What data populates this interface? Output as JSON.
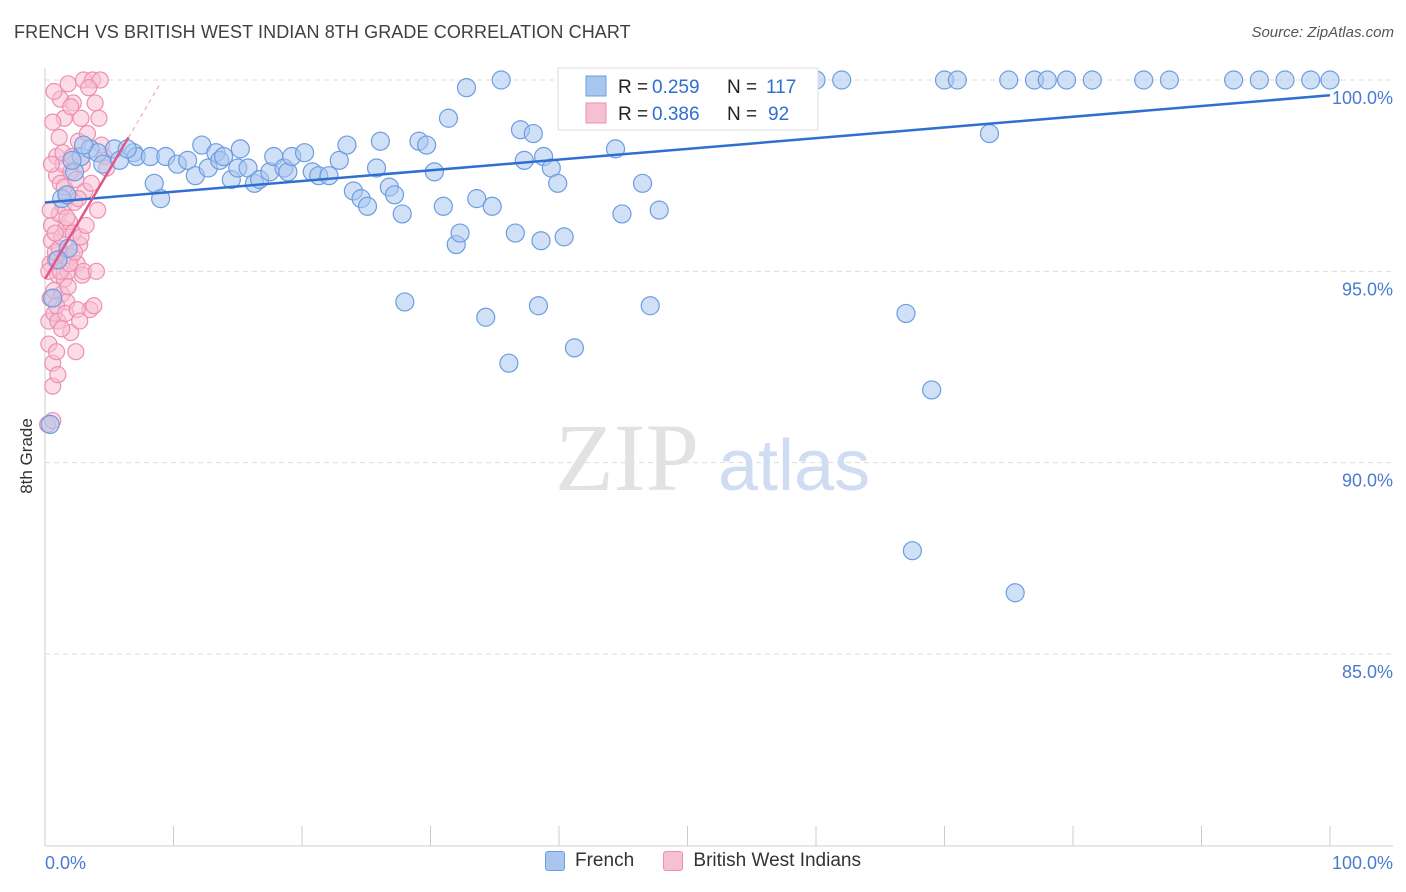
{
  "title": "FRENCH VS BRITISH WEST INDIAN 8TH GRADE CORRELATION CHART",
  "source": "Source: ZipAtlas.com",
  "watermark": {
    "zip": "ZIP",
    "atlas": "atlas"
  },
  "colors": {
    "french": "#6d9de0",
    "french_fill": "#a9c6ef",
    "french_line": "#2e6fd0",
    "bwi": "#ee8fb1",
    "bwi_fill": "#f7bfd3",
    "bwi_line": "#e0578a",
    "axis_label": "#4a7bd0",
    "grid": "#dddddd"
  },
  "legend_top": [
    {
      "r_label": "R =",
      "r": "0.259",
      "n_label": "N =",
      "n": "117"
    },
    {
      "r_label": "R =",
      "r": "0.386",
      "n_label": "N =",
      "n": "92"
    }
  ],
  "chart_data": {
    "type": "scatter",
    "title": "FRENCH VS BRITISH WEST INDIAN 8TH GRADE CORRELATION CHART",
    "xlabel": "",
    "ylabel": "8th Grade",
    "xlim": [
      0,
      100
    ],
    "ylim": [
      80.5,
      100.9
    ],
    "x_tick_labels": [
      "0.0%",
      "100.0%"
    ],
    "y_ticks": [
      85,
      90,
      95,
      100
    ],
    "y_tick_labels": [
      "85.0%",
      "90.0%",
      "95.0%",
      "100.0%"
    ],
    "grid": true,
    "legend_placement": "bottom-center",
    "series": [
      {
        "name": "French",
        "R": 0.259,
        "N": 117,
        "trend": {
          "x": [
            0,
            100
          ],
          "y": [
            96.8,
            99.6
          ]
        },
        "points": [
          [
            0.4,
            91.0
          ],
          [
            1.3,
            96.9
          ],
          [
            1.7,
            97.0
          ],
          [
            1.8,
            95.6
          ],
          [
            2.3,
            97.6
          ],
          [
            2.8,
            98.0
          ],
          [
            3.5,
            98.2
          ],
          [
            4.1,
            98.1
          ],
          [
            4.5,
            97.8
          ],
          [
            5.4,
            98.2
          ],
          [
            6.9,
            98.1
          ],
          [
            7.1,
            98.0
          ],
          [
            8.2,
            98.0
          ],
          [
            8.5,
            97.3
          ],
          [
            9.0,
            96.9
          ],
          [
            9.4,
            98.0
          ],
          [
            10.3,
            97.8
          ],
          [
            11.1,
            97.9
          ],
          [
            11.7,
            97.5
          ],
          [
            12.2,
            98.3
          ],
          [
            12.7,
            97.7
          ],
          [
            13.3,
            98.1
          ],
          [
            13.6,
            97.9
          ],
          [
            13.9,
            98.0
          ],
          [
            14.5,
            97.4
          ],
          [
            15.0,
            97.7
          ],
          [
            15.2,
            98.2
          ],
          [
            15.8,
            97.7
          ],
          [
            16.3,
            97.3
          ],
          [
            16.7,
            97.4
          ],
          [
            17.5,
            97.6
          ],
          [
            17.8,
            98.0
          ],
          [
            18.6,
            97.7
          ],
          [
            18.9,
            97.6
          ],
          [
            19.2,
            98.0
          ],
          [
            20.2,
            98.1
          ],
          [
            20.8,
            97.6
          ],
          [
            21.3,
            97.5
          ],
          [
            22.1,
            97.5
          ],
          [
            22.9,
            97.9
          ],
          [
            23.5,
            98.3
          ],
          [
            24.0,
            97.1
          ],
          [
            24.6,
            96.9
          ],
          [
            25.1,
            96.7
          ],
          [
            25.8,
            97.7
          ],
          [
            26.1,
            98.4
          ],
          [
            26.8,
            97.2
          ],
          [
            27.2,
            97.0
          ],
          [
            27.8,
            96.5
          ],
          [
            28.0,
            94.2
          ],
          [
            29.1,
            98.4
          ],
          [
            29.7,
            98.3
          ],
          [
            30.3,
            97.6
          ],
          [
            31.0,
            96.7
          ],
          [
            31.4,
            99.0
          ],
          [
            32.0,
            95.7
          ],
          [
            32.3,
            96.0
          ],
          [
            32.8,
            99.8
          ],
          [
            33.6,
            96.9
          ],
          [
            34.3,
            93.8
          ],
          [
            34.8,
            96.7
          ],
          [
            35.5,
            100.0
          ],
          [
            36.1,
            92.6
          ],
          [
            36.6,
            96.0
          ],
          [
            37.0,
            98.7
          ],
          [
            37.3,
            97.9
          ],
          [
            38.0,
            98.6
          ],
          [
            38.4,
            94.1
          ],
          [
            38.6,
            95.8
          ],
          [
            38.8,
            98.0
          ],
          [
            39.4,
            97.7
          ],
          [
            39.9,
            97.3
          ],
          [
            40.4,
            95.9
          ],
          [
            41.2,
            93.0
          ],
          [
            42.8,
            100.0
          ],
          [
            43.9,
            100.0
          ],
          [
            44.4,
            98.2
          ],
          [
            44.9,
            96.5
          ],
          [
            45.6,
            100.0
          ],
          [
            46.5,
            97.3
          ],
          [
            46.9,
            100.0
          ],
          [
            47.1,
            94.1
          ],
          [
            47.8,
            96.6
          ],
          [
            48.5,
            100.0
          ],
          [
            50.0,
            100.0
          ],
          [
            51.5,
            100.0
          ],
          [
            53.0,
            100.0
          ],
          [
            55.0,
            100.0
          ],
          [
            57.0,
            100.0
          ],
          [
            58.5,
            100.0
          ],
          [
            60.0,
            100.0
          ],
          [
            62.0,
            100.0
          ],
          [
            67.0,
            93.9
          ],
          [
            67.5,
            87.7
          ],
          [
            69.0,
            91.9
          ],
          [
            70.0,
            100.0
          ],
          [
            71.0,
            100.0
          ],
          [
            73.5,
            98.6
          ],
          [
            75.0,
            100.0
          ],
          [
            75.5,
            86.6
          ],
          [
            77.0,
            100.0
          ],
          [
            78.0,
            100.0
          ],
          [
            79.5,
            100.0
          ],
          [
            81.5,
            100.0
          ],
          [
            85.5,
            100.0
          ],
          [
            87.5,
            100.0
          ],
          [
            92.5,
            100.0
          ],
          [
            94.5,
            100.0
          ],
          [
            96.5,
            100.0
          ],
          [
            98.5,
            100.0
          ],
          [
            100.0,
            100.0
          ],
          [
            0.6,
            94.3
          ],
          [
            1.0,
            95.3
          ],
          [
            2.1,
            97.9
          ],
          [
            3.0,
            98.3
          ],
          [
            5.8,
            97.9
          ],
          [
            6.4,
            98.2
          ]
        ]
      },
      {
        "name": "British West Indians",
        "R": 0.386,
        "N": 92,
        "trend": {
          "x": [
            0,
            6.5
          ],
          "y": [
            94.8,
            98.5
          ]
        },
        "points": [
          [
            0.2,
            91.0
          ],
          [
            0.3,
            93.1
          ],
          [
            0.3,
            93.7
          ],
          [
            0.4,
            94.3
          ],
          [
            0.4,
            95.2
          ],
          [
            0.5,
            95.8
          ],
          [
            0.5,
            96.2
          ],
          [
            0.6,
            92.6
          ],
          [
            0.6,
            92.0
          ],
          [
            0.7,
            93.9
          ],
          [
            0.7,
            94.5
          ],
          [
            0.8,
            95.3
          ],
          [
            0.8,
            95.5
          ],
          [
            0.9,
            97.5
          ],
          [
            0.9,
            98.0
          ],
          [
            1.0,
            93.7
          ],
          [
            1.0,
            94.9
          ],
          [
            1.1,
            95.6
          ],
          [
            1.1,
            96.5
          ],
          [
            1.2,
            97.3
          ],
          [
            1.2,
            99.5
          ],
          [
            1.3,
            94.4
          ],
          [
            1.3,
            95.9
          ],
          [
            1.4,
            96.7
          ],
          [
            1.4,
            97.8
          ],
          [
            1.5,
            99.0
          ],
          [
            1.5,
            94.8
          ],
          [
            1.6,
            95.4
          ],
          [
            1.6,
            96.1
          ],
          [
            1.7,
            97.0
          ],
          [
            1.7,
            94.2
          ],
          [
            1.8,
            95.0
          ],
          [
            1.8,
            99.9
          ],
          [
            1.9,
            96.3
          ],
          [
            2.0,
            97.6
          ],
          [
            2.0,
            93.4
          ],
          [
            2.1,
            95.4
          ],
          [
            2.2,
            99.4
          ],
          [
            2.3,
            96.8
          ],
          [
            2.4,
            92.9
          ],
          [
            2.5,
            95.2
          ],
          [
            2.6,
            98.4
          ],
          [
            2.7,
            95.7
          ],
          [
            2.8,
            99.0
          ],
          [
            2.9,
            94.9
          ],
          [
            3.0,
            100.0
          ],
          [
            3.1,
            97.1
          ],
          [
            3.3,
            98.6
          ],
          [
            3.5,
            94.0
          ],
          [
            3.7,
            100.0
          ],
          [
            3.9,
            99.4
          ],
          [
            4.1,
            96.6
          ],
          [
            4.3,
            100.0
          ],
          [
            4.6,
            98.0
          ],
          [
            0.3,
            95.0
          ],
          [
            0.4,
            96.6
          ],
          [
            0.5,
            97.8
          ],
          [
            0.6,
            98.9
          ],
          [
            0.7,
            99.7
          ],
          [
            0.8,
            96.0
          ],
          [
            0.9,
            94.1
          ],
          [
            1.0,
            92.3
          ],
          [
            1.1,
            98.5
          ],
          [
            1.2,
            95.0
          ],
          [
            1.3,
            93.5
          ],
          [
            1.4,
            98.1
          ],
          [
            1.5,
            97.2
          ],
          [
            1.6,
            93.9
          ],
          [
            1.7,
            96.4
          ],
          [
            1.8,
            94.6
          ],
          [
            1.9,
            95.2
          ],
          [
            2.0,
            99.3
          ],
          [
            2.1,
            98.0
          ],
          [
            2.2,
            96.0
          ],
          [
            2.3,
            95.5
          ],
          [
            2.4,
            97.4
          ],
          [
            2.5,
            94.0
          ],
          [
            2.6,
            96.9
          ],
          [
            2.7,
            93.7
          ],
          [
            2.8,
            95.9
          ],
          [
            2.9,
            97.8
          ],
          [
            3.0,
            95.0
          ],
          [
            3.2,
            96.2
          ],
          [
            3.4,
            99.8
          ],
          [
            3.6,
            97.3
          ],
          [
            3.8,
            94.1
          ],
          [
            4.0,
            95.0
          ],
          [
            4.2,
            99.0
          ],
          [
            4.4,
            98.3
          ],
          [
            4.8,
            97.7
          ],
          [
            0.6,
            91.1
          ],
          [
            0.9,
            92.9
          ]
        ]
      }
    ]
  }
}
